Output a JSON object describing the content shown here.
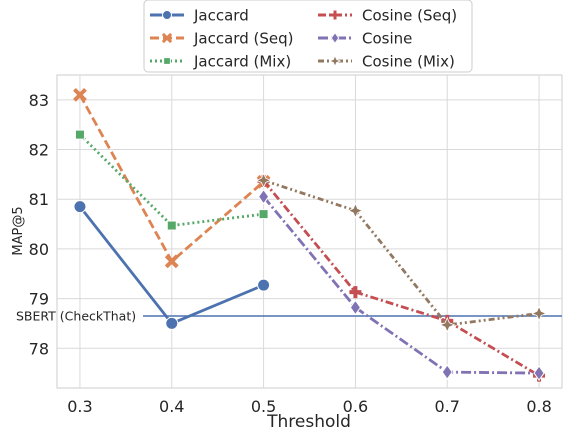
{
  "chart_data": {
    "type": "line",
    "xlabel": "Threshold",
    "ylabel": "MAP@5",
    "x_ticks": [
      "0.3",
      "0.4",
      "0.5",
      "0.6",
      "0.7",
      "0.8"
    ],
    "y_ticks": [
      "78",
      "79",
      "80",
      "81",
      "82",
      "83"
    ],
    "xlim": [
      0.275,
      0.825
    ],
    "ylim": [
      77.2,
      83.5
    ],
    "grid": true,
    "legend_position": "top-center",
    "reference_line": {
      "label": "SBERT (CheckThat)",
      "value": 78.65,
      "color": "#4c72b0"
    },
    "series": [
      {
        "name": "Jaccard",
        "color": "#4c72b0",
        "dash": "solid",
        "marker": "circle",
        "x": [
          0.3,
          0.4,
          0.5
        ],
        "y": [
          80.85,
          78.5,
          79.27
        ]
      },
      {
        "name": "Jaccard (Seq)",
        "color": "#dd8452",
        "dash": "dashed",
        "marker": "x",
        "x": [
          0.3,
          0.4,
          0.5
        ],
        "y": [
          83.1,
          79.75,
          81.35
        ]
      },
      {
        "name": "Jaccard (Mix)",
        "color": "#55a868",
        "dash": "dotted",
        "marker": "square",
        "x": [
          0.3,
          0.4,
          0.5
        ],
        "y": [
          82.3,
          80.47,
          80.7
        ]
      },
      {
        "name": "Cosine (Seq)",
        "color": "#c44e52",
        "dash": "dashdot",
        "marker": "plus",
        "x": [
          0.5,
          0.6,
          0.7,
          0.8
        ],
        "y": [
          81.37,
          79.13,
          78.55,
          77.45
        ]
      },
      {
        "name": "Cosine",
        "color": "#8172b3",
        "dash": "longdashdot",
        "marker": "diamond",
        "x": [
          0.5,
          0.6,
          0.7,
          0.8
        ],
        "y": [
          81.05,
          78.82,
          77.52,
          77.5
        ]
      },
      {
        "name": "Cosine (Mix)",
        "color": "#937860",
        "dash": "dashdotdot",
        "marker": "star",
        "x": [
          0.5,
          0.6,
          0.7,
          0.8
        ],
        "y": [
          81.38,
          80.77,
          78.47,
          78.7
        ]
      }
    ]
  }
}
